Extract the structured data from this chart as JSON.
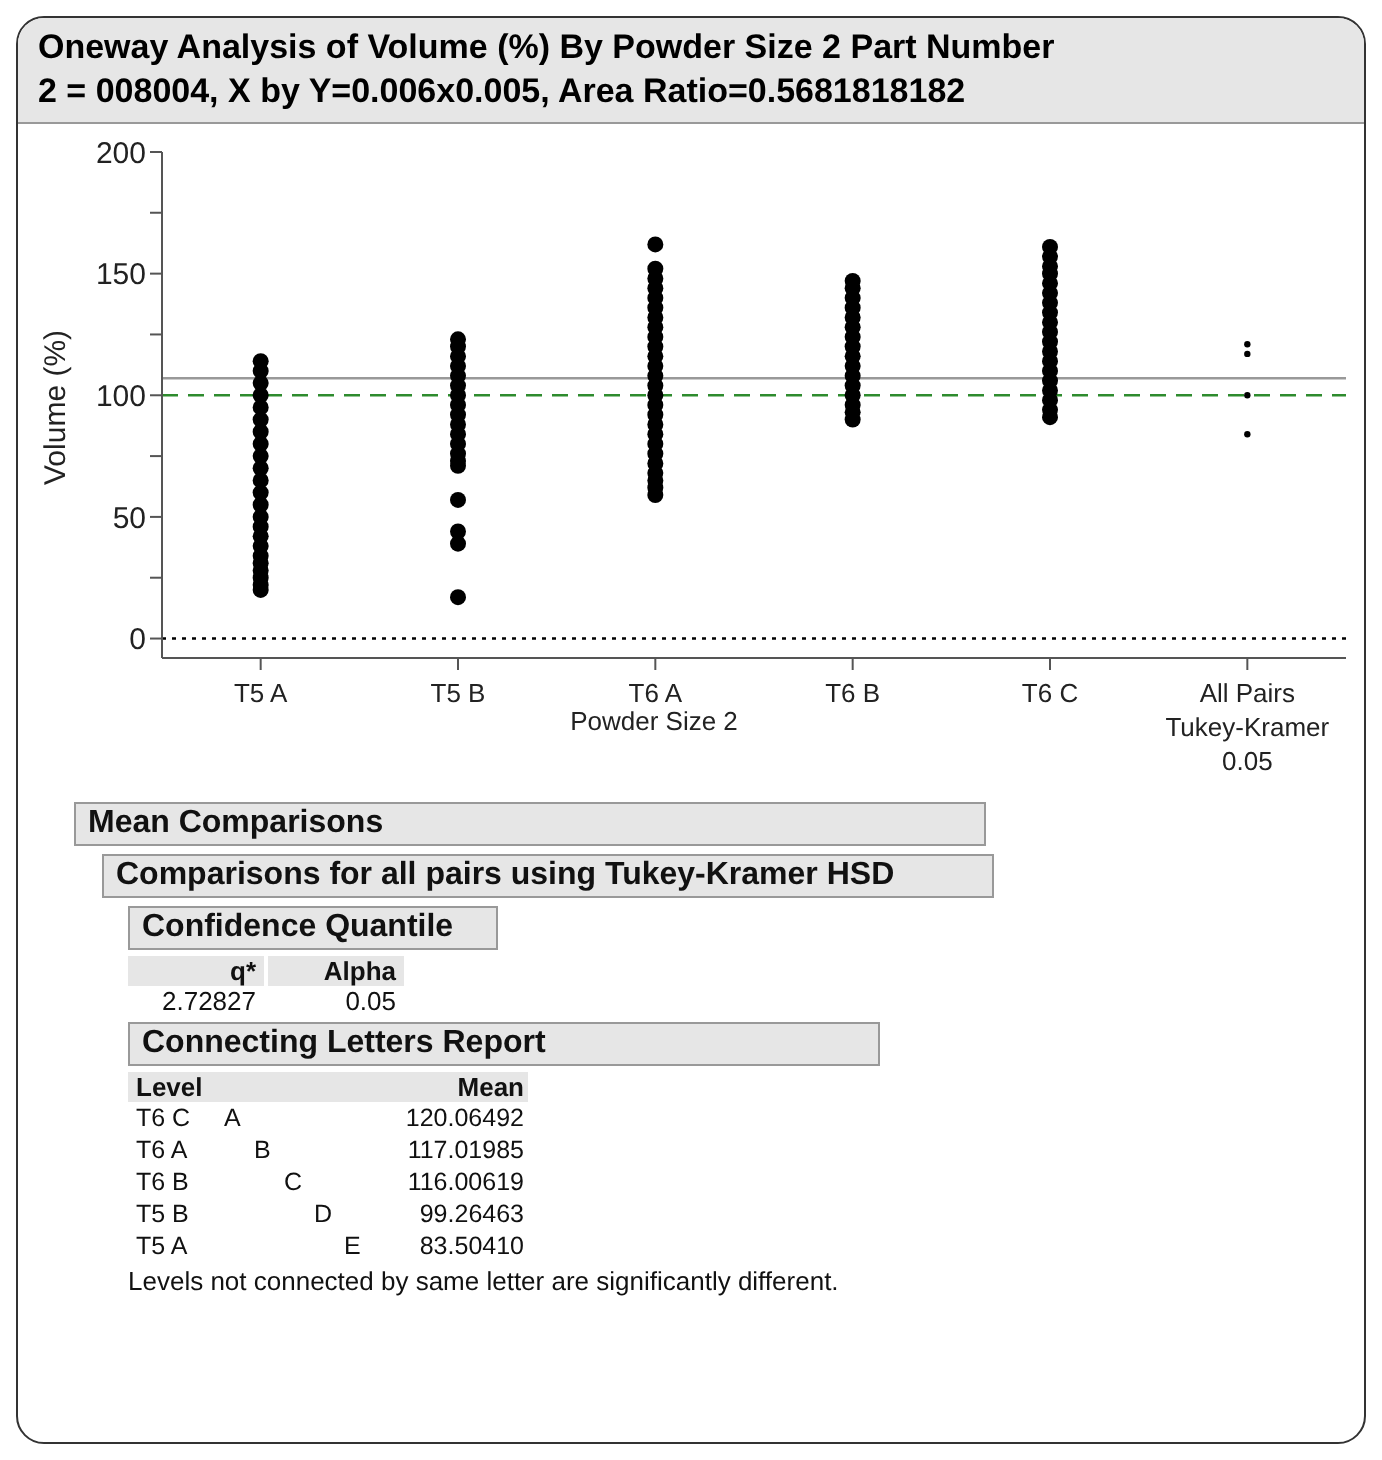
{
  "chart_data": {
    "type": "scatter",
    "title": "Oneway Analysis of Volume (%) By Powder Size 2 Part Number",
    "subtitle": "2 = 008004, X by Y=0.006x0.005, Area Ratio=0.5681818182",
    "xlabel": "Powder Size 2",
    "ylabel": "Volume (%)",
    "categories": [
      "T5 A",
      "T5 B",
      "T6 A",
      "T6 B",
      "T6 C",
      "All Pairs Tukey-Kramer 0.05"
    ],
    "ylim": [
      -8,
      200
    ],
    "yticks": [
      0,
      {
        "value": 25,
        "label": null
      },
      50,
      {
        "value": 75,
        "label": null
      },
      100,
      {
        "value": 125,
        "label": null
      },
      150,
      {
        "value": 175,
        "label": null
      },
      200
    ],
    "marker": "circle",
    "series": [
      {
        "color": "#000000",
        "x": [
          "T5 A",
          "T5 A",
          "T5 A",
          "T5 A",
          "T5 A",
          "T5 A",
          "T5 A",
          "T5 A",
          "T5 A",
          "T5 A",
          "T5 A",
          "T5 A",
          "T5 A",
          "T5 A",
          "T5 A",
          "T5 A",
          "T5 A",
          "T5 A",
          "T5 A",
          "T5 A",
          "T5 A",
          "T5 A",
          "T5 A",
          "T5 B",
          "T5 B",
          "T5 B",
          "T5 B",
          "T5 B",
          "T5 B",
          "T5 B",
          "T5 B",
          "T5 B",
          "T5 B",
          "T5 B",
          "T5 B",
          "T5 B",
          "T5 B",
          "T5 B",
          "T5 B",
          "T5 B",
          "T5 B",
          "T5 B",
          "T6 A",
          "T6 A",
          "T6 A",
          "T6 A",
          "T6 A",
          "T6 A",
          "T6 A",
          "T6 A",
          "T6 A",
          "T6 A",
          "T6 A",
          "T6 A",
          "T6 A",
          "T6 A",
          "T6 A",
          "T6 A",
          "T6 A",
          "T6 A",
          "T6 A",
          "T6 A",
          "T6 A",
          "T6 A",
          "T6 A",
          "T6 A",
          "T6 A",
          "T6 A",
          "T6 B",
          "T6 B",
          "T6 B",
          "T6 B",
          "T6 B",
          "T6 B",
          "T6 B",
          "T6 B",
          "T6 B",
          "T6 B",
          "T6 B",
          "T6 B",
          "T6 B",
          "T6 B",
          "T6 B",
          "T6 B",
          "T6 C",
          "T6 C",
          "T6 C",
          "T6 C",
          "T6 C",
          "T6 C",
          "T6 C",
          "T6 C",
          "T6 C",
          "T6 C",
          "T6 C",
          "T6 C",
          "T6 C",
          "T6 C",
          "T6 C",
          "T6 C",
          "T6 C",
          "T6 C",
          "T6 C"
        ],
        "values": [
          20,
          22,
          25,
          28,
          31,
          34,
          38,
          42,
          46,
          50,
          55,
          60,
          65,
          70,
          75,
          80,
          85,
          90,
          95,
          100,
          105,
          110,
          114,
          17,
          39,
          44,
          57,
          71,
          73,
          76,
          80,
          84,
          88,
          92,
          96,
          100,
          104,
          108,
          112,
          116,
          120,
          123,
          59,
          62,
          65,
          68,
          72,
          76,
          80,
          84,
          88,
          92,
          96,
          100,
          104,
          108,
          112,
          116,
          120,
          124,
          128,
          132,
          136,
          140,
          144,
          148,
          152,
          162,
          90,
          93,
          96,
          100,
          104,
          108,
          112,
          116,
          120,
          124,
          128,
          132,
          136,
          140,
          144,
          147,
          91,
          94,
          98,
          102,
          106,
          110,
          114,
          118,
          122,
          126,
          130,
          134,
          138,
          142,
          146,
          150,
          153,
          157,
          161
        ]
      },
      {
        "color": "#000000",
        "marker": "circle",
        "x": [
          "All Pairs Tukey-Kramer 0.05",
          "All Pairs Tukey-Kramer 0.05",
          "All Pairs Tukey-Kramer 0.05",
          "All Pairs Tukey-Kramer 0.05"
        ],
        "values": [
          121,
          117,
          100,
          84
        ]
      }
    ],
    "ref_lines": [
      {
        "axis": "y",
        "value": 107,
        "color": "#999999",
        "line_style": "solid"
      },
      {
        "axis": "y",
        "value": 100,
        "color": "#2e8b2e",
        "line_style": "dashed"
      },
      {
        "axis": "y",
        "value": 0,
        "color": "#000000",
        "line_style": "dotted"
      }
    ],
    "annotations": [
      "Mean Comparisons",
      "Comparisons for all pairs using Tukey-Kramer HSD",
      "Confidence Quantile",
      "q*",
      "Alpha",
      "2.72827",
      "0.05",
      "Connecting Letters Report",
      "Level",
      "Mean",
      "T6 C",
      "A",
      "120.06492",
      "T6 A",
      "B",
      "117.01985",
      "T6 B",
      "C",
      "116.00619",
      "T5 B",
      "D",
      "99.26463",
      "T5 A",
      "E",
      "83.50410",
      "Levels not connected by same letter are significantly different."
    ]
  }
}
